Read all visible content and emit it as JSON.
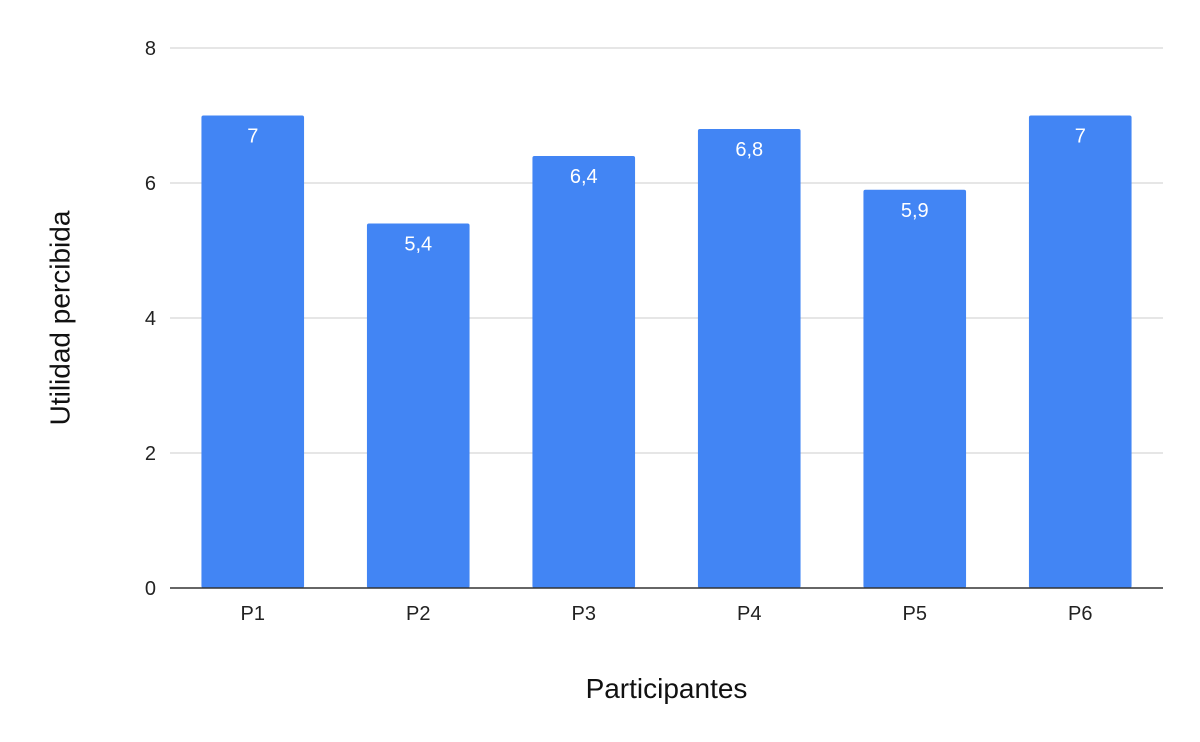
{
  "chart_data": {
    "type": "bar",
    "title": "",
    "xlabel": "Participantes",
    "ylabel": "Utilidad percibida",
    "categories": [
      "P1",
      "P2",
      "P3",
      "P4",
      "P5",
      "P6"
    ],
    "values": [
      7,
      5.4,
      6.4,
      6.8,
      5.9,
      7
    ],
    "value_labels": [
      "7",
      "5,4",
      "6,4",
      "6,8",
      "5,9",
      "7"
    ],
    "ylim": [
      0,
      8
    ],
    "yticks": [
      0,
      2,
      4,
      6,
      8
    ],
    "grid": true,
    "legend": "none",
    "bar_color": "#4285F4",
    "label_color": "#FFFFFF"
  }
}
